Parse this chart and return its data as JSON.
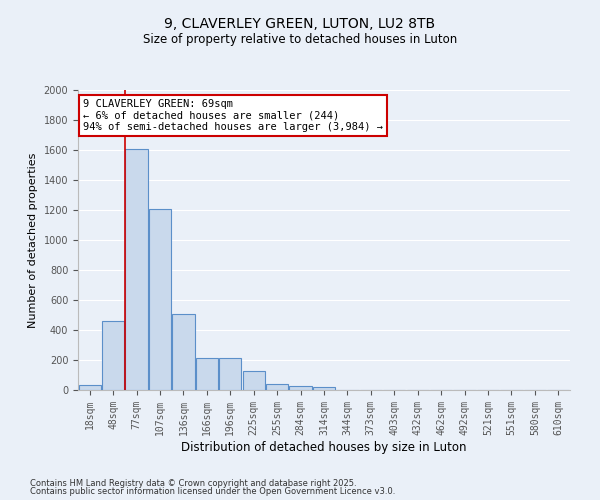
{
  "title1": "9, CLAVERLEY GREEN, LUTON, LU2 8TB",
  "title2": "Size of property relative to detached houses in Luton",
  "xlabel": "Distribution of detached houses by size in Luton",
  "ylabel": "Number of detached properties",
  "bins": [
    "18sqm",
    "48sqm",
    "77sqm",
    "107sqm",
    "136sqm",
    "166sqm",
    "196sqm",
    "225sqm",
    "255sqm",
    "284sqm",
    "314sqm",
    "344sqm",
    "373sqm",
    "403sqm",
    "432sqm",
    "462sqm",
    "492sqm",
    "521sqm",
    "551sqm",
    "580sqm",
    "610sqm"
  ],
  "values": [
    35,
    460,
    1610,
    1210,
    510,
    215,
    215,
    125,
    40,
    25,
    18,
    0,
    0,
    0,
    0,
    0,
    0,
    0,
    0,
    0,
    0
  ],
  "bar_color": "#c9d9ec",
  "bar_edge_color": "#5b8fc9",
  "vline_color": "#cc0000",
  "annotation_line1": "9 CLAVERLEY GREEN: 69sqm",
  "annotation_line2": "← 6% of detached houses are smaller (244)",
  "annotation_line3": "94% of semi-detached houses are larger (3,984) →",
  "annotation_box_color": "#ffffff",
  "annotation_box_edge": "#cc0000",
  "ylim": [
    0,
    2000
  ],
  "yticks": [
    0,
    200,
    400,
    600,
    800,
    1000,
    1200,
    1400,
    1600,
    1800,
    2000
  ],
  "background_color": "#eaf0f8",
  "grid_color": "#ffffff",
  "footer1": "Contains HM Land Registry data © Crown copyright and database right 2025.",
  "footer2": "Contains public sector information licensed under the Open Government Licence v3.0."
}
